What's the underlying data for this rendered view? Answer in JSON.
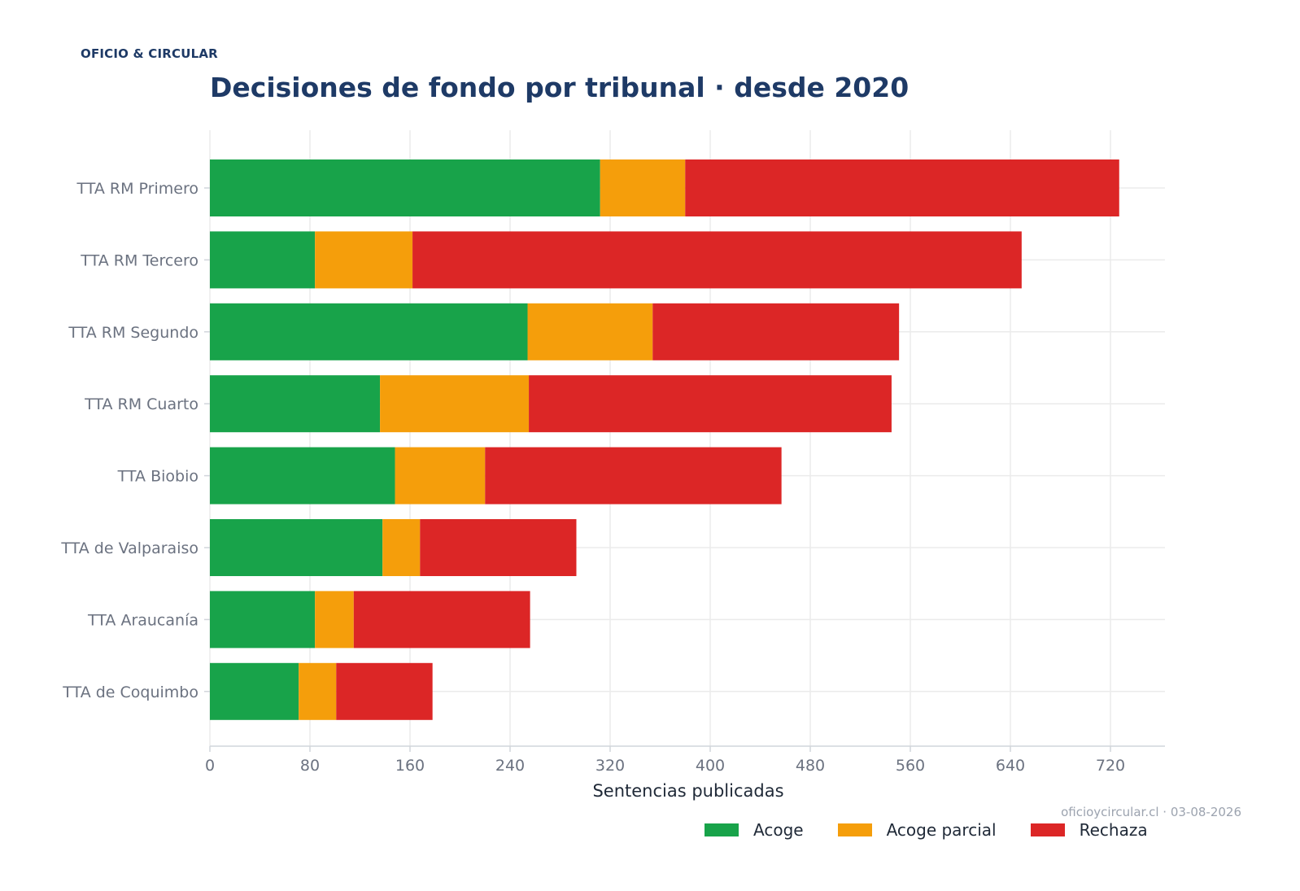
{
  "brand": "OFICIO & CIRCULAR",
  "title": "Decisiones de fondo por tribunal · desde 2020",
  "source": "oficioycircular.cl · 03-08-2026",
  "colors": {
    "acoge": "#18a34a",
    "acoge_parcial": "#f59e0b",
    "rechaza": "#dc2626",
    "title": "#1e3a66"
  },
  "chart_data": {
    "type": "bar",
    "orientation": "horizontal",
    "stacked": true,
    "title": "Decisiones de fondo por tribunal · desde 2020",
    "xlabel": "Sentencias publicadas",
    "ylabel": "",
    "xlim": [
      0,
      760
    ],
    "xticks": [
      0,
      80,
      160,
      240,
      320,
      400,
      480,
      560,
      640,
      720
    ],
    "grid": true,
    "legend_position": "bottom-right",
    "categories": [
      "TTA RM Primero",
      "TTA RM Tercero",
      "TTA RM Segundo",
      "TTA RM Cuarto",
      "TTA Biobio",
      "TTA de Valparaiso",
      "TTA Araucanía",
      "TTA de Coquimbo"
    ],
    "series": [
      {
        "name": "Acoge",
        "color": "#18a34a",
        "values": [
          312,
          84,
          254,
          136,
          148,
          138,
          84,
          71
        ]
      },
      {
        "name": "Acoge parcial",
        "color": "#f59e0b",
        "values": [
          68,
          78,
          100,
          119,
          72,
          30,
          31,
          30
        ]
      },
      {
        "name": "Rechaza",
        "color": "#dc2626",
        "values": [
          347,
          487,
          197,
          290,
          237,
          125,
          141,
          77
        ]
      }
    ]
  }
}
